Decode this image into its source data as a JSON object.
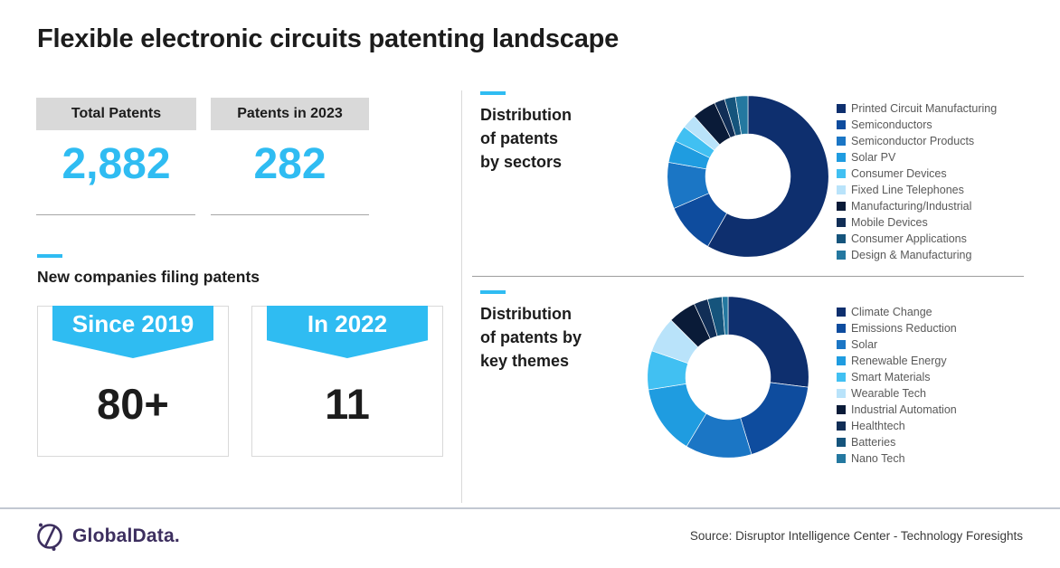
{
  "title": "Flexible electronic circuits patenting landscape",
  "accent_color": "#2fbcf2",
  "stats": [
    {
      "label": "Total Patents",
      "value": "2,882"
    },
    {
      "label": "Patents in 2023",
      "value": "282"
    }
  ],
  "new_companies": {
    "section_label": "New companies filing patents",
    "cards": [
      {
        "ribbon": "Since 2019",
        "value": "80+"
      },
      {
        "ribbon": "In 2022",
        "value": "11"
      }
    ]
  },
  "chart_data": [
    {
      "type": "pie",
      "donut": true,
      "title": "Distribution of patents by sectors",
      "title_lines": [
        "Distribution",
        "of patents",
        "by sectors"
      ],
      "legend_position": "right",
      "value_unit": "percent_share_estimated",
      "labels": [
        "Printed Circuit Manufacturing",
        "Semiconductors",
        "Semiconductor Products",
        "Solar PV",
        "Consumer Devices",
        "Fixed Line Telephones",
        "Manufacturing/Industrial",
        "Mobile Devices",
        "Consumer Applications",
        "Design & Manufacturing"
      ],
      "values": [
        58.3,
        10.2,
        9.3,
        4.4,
        3.3,
        2.9,
        4.8,
        2.1,
        2.2,
        2.5
      ],
      "colors": [
        "#0e2f6e",
        "#0e4c9e",
        "#1b76c5",
        "#1f9ce0",
        "#41c0f2",
        "#b9e3fa",
        "#0a1b38",
        "#112e56",
        "#15547c",
        "#2478a0"
      ]
    },
    {
      "type": "pie",
      "donut": true,
      "title": "Distribution of patents by key themes",
      "title_lines": [
        "Distribution",
        "of patents by",
        "key themes"
      ],
      "legend_position": "right",
      "value_unit": "percent_share_estimated",
      "labels": [
        "Climate Change",
        "Emissions Reduction",
        "Solar",
        "Renewable Energy",
        "Smart Materials",
        "Wearable Tech",
        "Industrial Automation",
        "Healthtech",
        "Batteries",
        "Nano Tech"
      ],
      "values": [
        27.0,
        18.3,
        13.3,
        13.9,
        7.8,
        7.2,
        5.6,
        2.8,
        2.9,
        1.2
      ],
      "colors": [
        "#0e2f6e",
        "#0e4c9e",
        "#1b76c5",
        "#1f9ce0",
        "#41c0f2",
        "#b9e3fa",
        "#0a1b38",
        "#112e56",
        "#15547c",
        "#2478a0"
      ]
    }
  ],
  "footer": {
    "logo_text": "GlobalData.",
    "source": "Source: Disruptor Intelligence Center - Technology Foresights"
  }
}
